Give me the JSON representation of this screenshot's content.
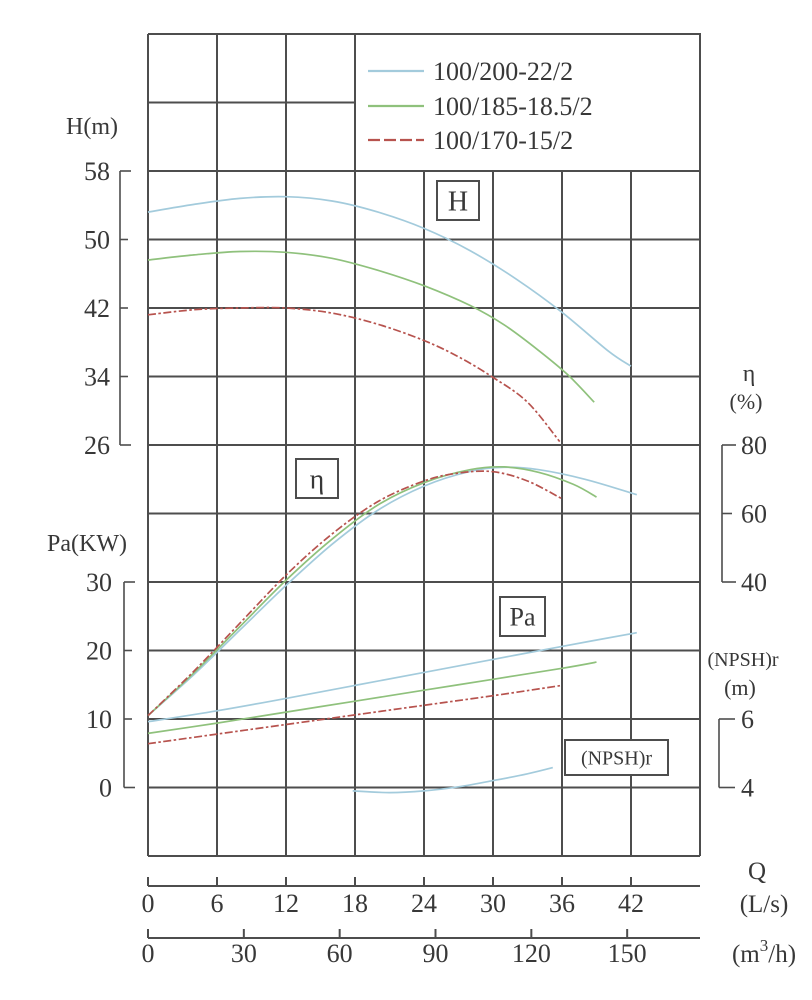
{
  "colors": {
    "model_blue": "#a3cbdc",
    "model_green": "#8fc17c",
    "model_red": "#b7534e",
    "grid": "#4d4d4d",
    "text": "#383838"
  },
  "chart_data": {
    "type": "line",
    "title": "",
    "grid": "on",
    "legend_position": "top-right",
    "legend": [
      {
        "label": "100/200-22/2",
        "color": "#a3cbdc",
        "dash": false
      },
      {
        "label": "100/185-18.5/2",
        "color": "#8fc17c",
        "dash": false
      },
      {
        "label": "100/170-15/2",
        "color": "#b7534e",
        "dash": true
      }
    ],
    "x_axis": {
      "name": "Q",
      "units": [
        {
          "label": "(L/s)",
          "pre": "(L/s)",
          "sup_text": "",
          "post": "",
          "ticks": [
            0,
            6,
            12,
            18,
            24,
            30,
            36,
            42
          ],
          "Ls_per_unit": 1
        },
        {
          "label": "(m³/h)",
          "pre": "(m",
          "sup_text": "3",
          "post": "/h)",
          "ticks": [
            0,
            30,
            60,
            90,
            120,
            150
          ],
          "Ls_per_unit": 0.27778
        }
      ]
    },
    "y_axes": [
      {
        "id": "H",
        "title": "H(m)",
        "title2": "",
        "side": "left",
        "ticks": [
          58,
          50,
          42,
          34,
          26
        ],
        "tick_rows": [
          2,
          3,
          4,
          5,
          6
        ]
      },
      {
        "id": "Pa",
        "title": "Pa(KW)",
        "title2": "",
        "side": "left",
        "ticks": [
          30,
          20,
          10,
          0
        ],
        "tick_rows": [
          8,
          9,
          10,
          11
        ]
      },
      {
        "id": "eta",
        "title": "η",
        "title2": "(%)",
        "side": "right",
        "ticks": [
          80,
          60,
          40
        ],
        "tick_rows": [
          6,
          7,
          8
        ]
      },
      {
        "id": "NPSH",
        "title": "(NPSH)r",
        "title2": "(m)",
        "side": "right",
        "ticks": [
          6,
          4
        ],
        "tick_rows": [
          10,
          11
        ]
      }
    ],
    "annotations": [
      {
        "label": "H"
      },
      {
        "label": "η"
      },
      {
        "label": "Pa"
      },
      {
        "label": "(NPSH)r"
      }
    ],
    "series": [
      {
        "axis": "H",
        "model": "100/200-22/2",
        "points": [
          [
            0,
            53.2
          ],
          [
            4,
            54.1
          ],
          [
            8,
            54.8
          ],
          [
            12,
            55.0
          ],
          [
            16,
            54.5
          ],
          [
            20,
            53.2
          ],
          [
            24,
            51.3
          ],
          [
            28,
            48.7
          ],
          [
            32,
            45.4
          ],
          [
            36,
            41.5
          ],
          [
            40,
            37.0
          ],
          [
            42,
            35.2
          ]
        ]
      },
      {
        "axis": "H",
        "model": "100/185-18.5/2",
        "points": [
          [
            0,
            47.6
          ],
          [
            4,
            48.2
          ],
          [
            8,
            48.6
          ],
          [
            12,
            48.5
          ],
          [
            16,
            47.8
          ],
          [
            20,
            46.4
          ],
          [
            24,
            44.6
          ],
          [
            28,
            42.3
          ],
          [
            31,
            40.0
          ],
          [
            34,
            37.0
          ],
          [
            36.5,
            34.2
          ],
          [
            38.8,
            31.0
          ]
        ]
      },
      {
        "axis": "H",
        "model": "100/170-15/2",
        "points": [
          [
            0,
            41.2
          ],
          [
            4,
            41.8
          ],
          [
            8,
            42.0
          ],
          [
            12,
            42.0
          ],
          [
            16,
            41.4
          ],
          [
            20,
            40.1
          ],
          [
            24,
            38.2
          ],
          [
            27,
            36.3
          ],
          [
            30,
            33.9
          ],
          [
            33,
            31.0
          ],
          [
            35.8,
            26.4
          ]
        ]
      },
      {
        "axis": "eta",
        "model": "100/200-22/2",
        "points": [
          [
            0,
            1
          ],
          [
            4,
            13
          ],
          [
            8,
            26
          ],
          [
            12,
            39
          ],
          [
            16,
            51
          ],
          [
            20,
            61
          ],
          [
            24,
            68
          ],
          [
            28,
            72.3
          ],
          [
            31,
            73.5
          ],
          [
            34,
            72.8
          ],
          [
            38,
            70
          ],
          [
            42.5,
            65.5
          ]
        ]
      },
      {
        "axis": "eta",
        "model": "100/185-18.5/2",
        "points": [
          [
            0,
            1
          ],
          [
            4,
            13.5
          ],
          [
            8,
            27
          ],
          [
            12,
            40.5
          ],
          [
            16,
            52.5
          ],
          [
            20,
            62.5
          ],
          [
            24,
            69
          ],
          [
            28,
            72.8
          ],
          [
            31,
            73.6
          ],
          [
            34,
            72
          ],
          [
            37,
            68.5
          ],
          [
            39,
            64.8
          ]
        ]
      },
      {
        "axis": "eta",
        "model": "100/170-15/2",
        "points": [
          [
            0,
            1
          ],
          [
            4,
            14
          ],
          [
            8,
            28
          ],
          [
            12,
            42
          ],
          [
            16,
            54
          ],
          [
            20,
            63.5
          ],
          [
            24,
            69.5
          ],
          [
            27,
            71.8
          ],
          [
            30,
            72.2
          ],
          [
            33,
            69.5
          ],
          [
            36,
            64.3
          ]
        ]
      },
      {
        "axis": "Pa",
        "model": "100/200-22/2",
        "points": [
          [
            0,
            9.6
          ],
          [
            6,
            11.2
          ],
          [
            12,
            13.0
          ],
          [
            18,
            14.9
          ],
          [
            24,
            16.8
          ],
          [
            30,
            18.7
          ],
          [
            36,
            20.6
          ],
          [
            42.5,
            22.6
          ]
        ]
      },
      {
        "axis": "Pa",
        "model": "100/185-18.5/2",
        "points": [
          [
            0,
            7.9
          ],
          [
            6,
            9.4
          ],
          [
            12,
            11.0
          ],
          [
            18,
            12.6
          ],
          [
            24,
            14.2
          ],
          [
            30,
            15.8
          ],
          [
            36,
            17.4
          ],
          [
            39,
            18.3
          ]
        ]
      },
      {
        "axis": "Pa",
        "model": "100/170-15/2",
        "points": [
          [
            0,
            6.4
          ],
          [
            6,
            7.8
          ],
          [
            12,
            9.2
          ],
          [
            18,
            10.6
          ],
          [
            24,
            12.0
          ],
          [
            30,
            13.4
          ],
          [
            36,
            14.9
          ]
        ]
      },
      {
        "axis": "NPSH",
        "model": "100/200-22/2",
        "points": [
          [
            17.8,
            3.9
          ],
          [
            21,
            3.85
          ],
          [
            24,
            3.9
          ],
          [
            27,
            4.02
          ],
          [
            30,
            4.2
          ],
          [
            33,
            4.4
          ],
          [
            35.2,
            4.58
          ]
        ]
      }
    ]
  }
}
